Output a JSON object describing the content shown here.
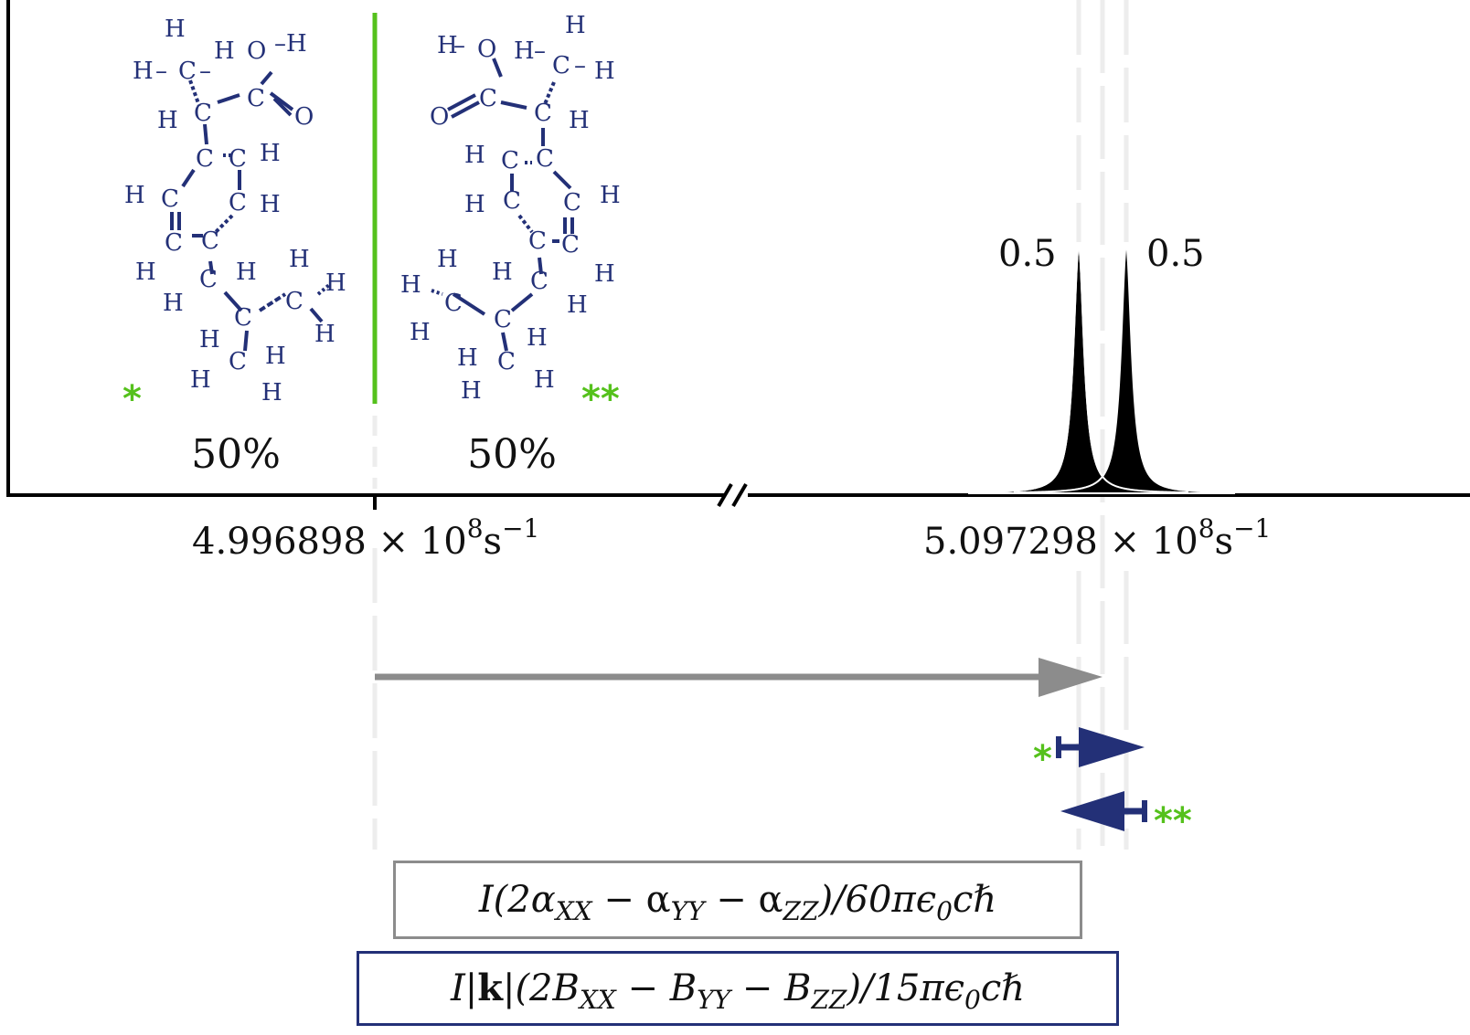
{
  "colors": {
    "molecule": "#233077",
    "accent_green": "#55c11c",
    "peak_fill": "#000000",
    "gray_arrow": "#8c8c8c",
    "blue_arrow": "#233077",
    "guide_lines": "#eeeeee"
  },
  "enantiomers": [
    {
      "name": "*",
      "percent": "50%",
      "marker": "*"
    },
    {
      "name": "**",
      "percent": "50%",
      "marker": "**"
    }
  ],
  "axis": {
    "left_tick": {
      "mantissa": "4.996898 × 10",
      "exp": "8",
      "unit": "s",
      "unit_exp": "−1"
    },
    "right_tick": {
      "mantissa": "5.097298 × 10",
      "exp": "8",
      "unit": "s",
      "unit_exp": "−1"
    },
    "broken": true
  },
  "peaks": [
    {
      "label": "0.5",
      "relative_intensity": 0.5
    },
    {
      "label": "0.5",
      "relative_intensity": 0.5
    }
  ],
  "shift_markers": {
    "star_single": "*",
    "star_double": "**"
  },
  "boxes": {
    "polarizability_term": "I(2α",
    "polarizability_full": [
      "I(2α",
      "XX",
      " − α",
      "YY",
      " − α",
      "ZZ",
      ")/60πϵ",
      "0",
      "cℏ"
    ],
    "optical_activity_full": [
      "I|",
      "k",
      "|(2B",
      "XX",
      " − B",
      "YY",
      " − B",
      "ZZ",
      ")/15πϵ",
      "0",
      "cℏ"
    ]
  }
}
